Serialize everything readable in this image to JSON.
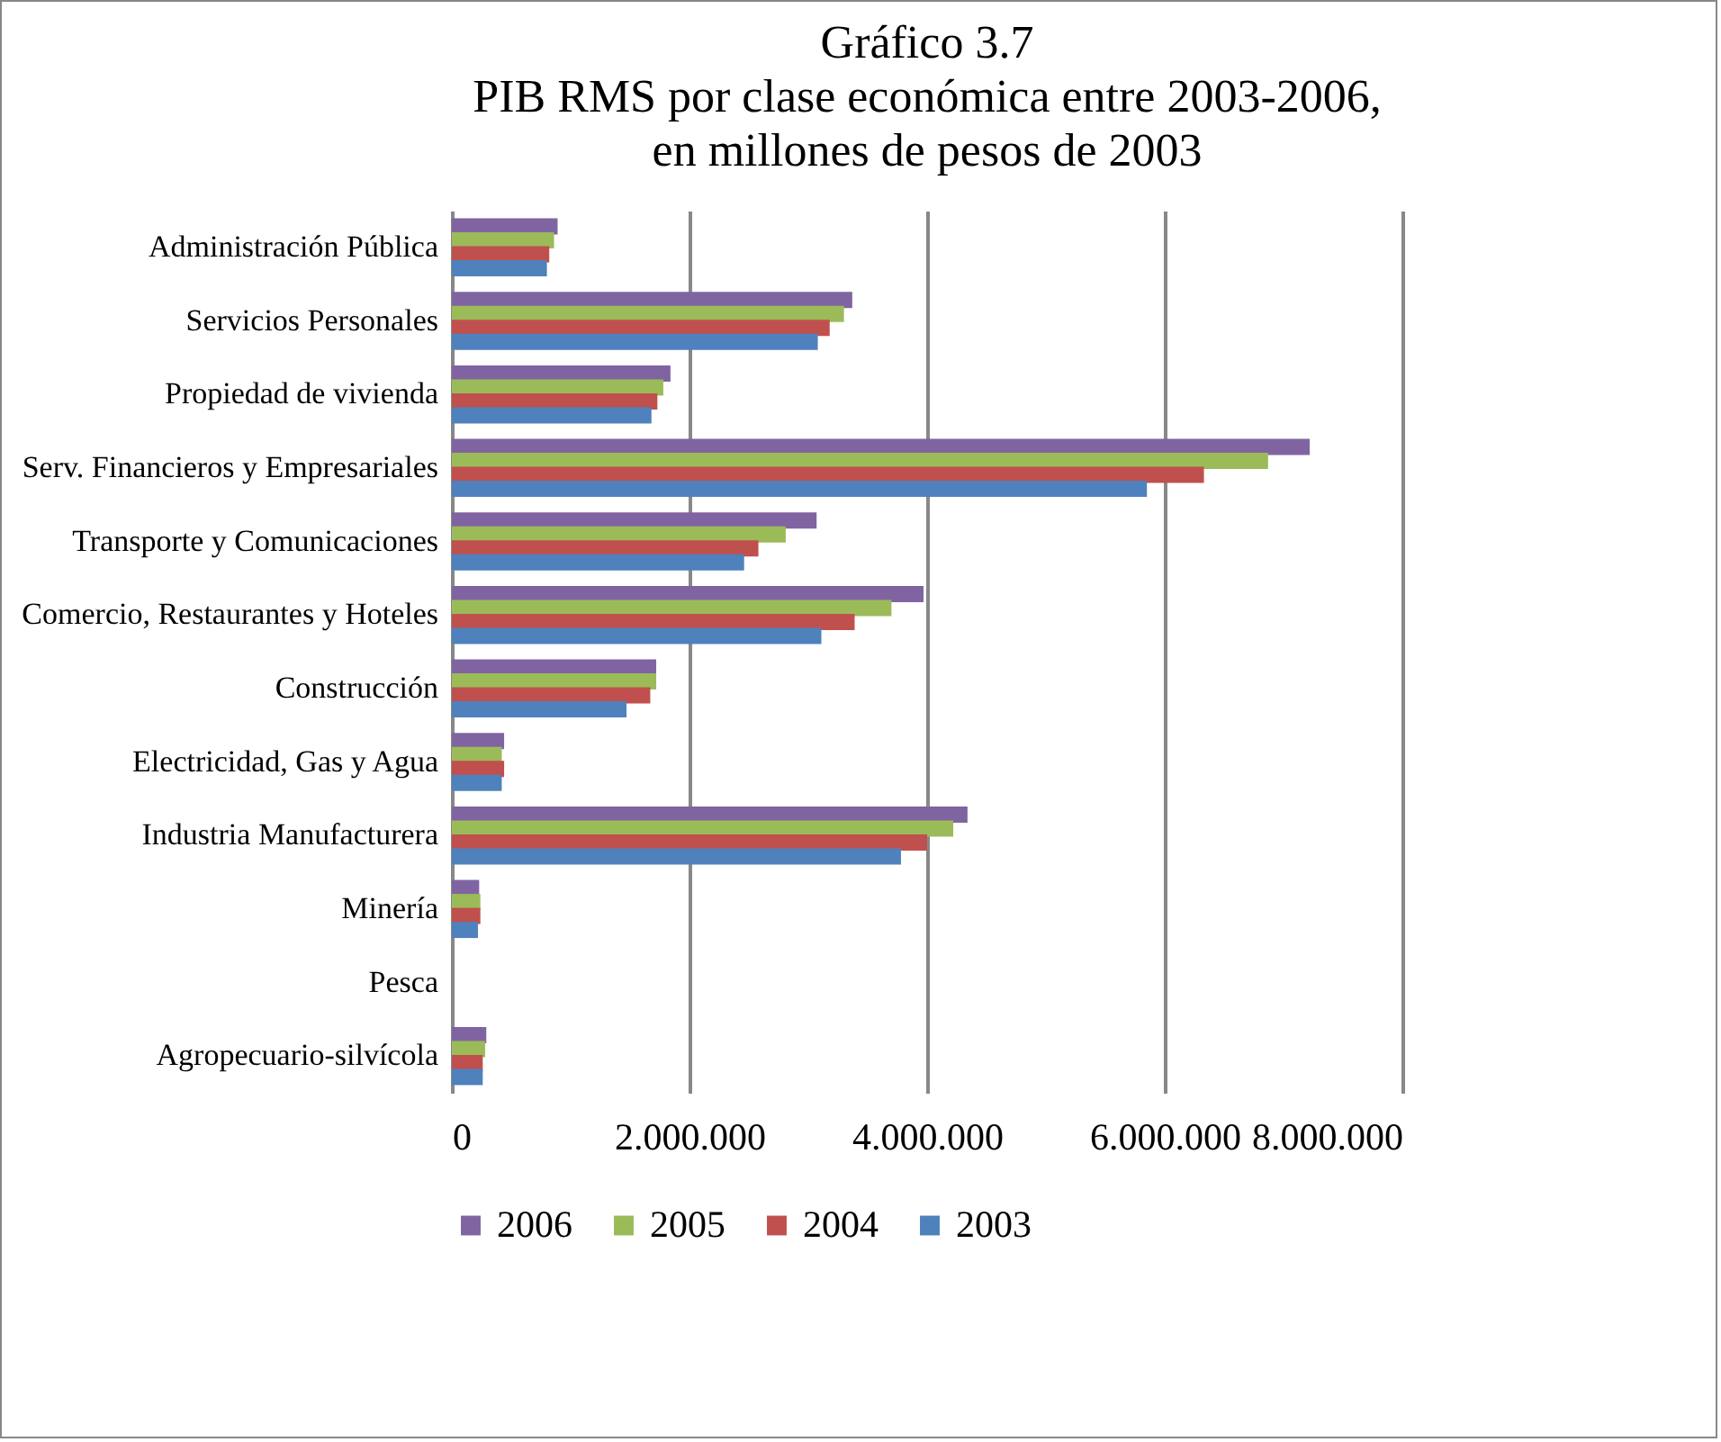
{
  "chart_data": {
    "type": "bar",
    "orientation": "horizontal",
    "title": "Gráfico 3.7\nPIB RMS por clase económica entre 2003-2006,\nen millones de pesos de 2003",
    "categories": [
      "Administración Pública",
      "Servicios Personales",
      "Propiedad de vivienda",
      "Serv. Financieros y Empresariales",
      "Transporte y Comunicaciones",
      "Comercio, Restaurantes y Hoteles",
      "Construcción",
      "Electricidad, Gas y Agua",
      "Industria Manufacturera",
      "Minería",
      "Pesca",
      "Agropecuario-silvícola"
    ],
    "series": [
      {
        "name": "2006",
        "color": "#8064a2",
        "values": [
          890000,
          3370000,
          1840000,
          7220000,
          3070000,
          3970000,
          1720000,
          440000,
          4340000,
          230000,
          0,
          290000
        ]
      },
      {
        "name": "2005",
        "color": "#9bbb59",
        "values": [
          860000,
          3300000,
          1780000,
          6870000,
          2810000,
          3700000,
          1720000,
          420000,
          4220000,
          240000,
          0,
          280000
        ]
      },
      {
        "name": "2004",
        "color": "#c0504d",
        "values": [
          820000,
          3180000,
          1730000,
          6330000,
          2580000,
          3390000,
          1670000,
          440000,
          4000000,
          240000,
          0,
          260000
        ]
      },
      {
        "name": "2003",
        "color": "#4f81bd",
        "values": [
          800000,
          3080000,
          1680000,
          5850000,
          2460000,
          3110000,
          1470000,
          420000,
          3780000,
          220000,
          0,
          260000
        ]
      }
    ],
    "xlim": [
      0,
      8000000
    ],
    "xticks": [
      0,
      {
        "value": 2000000,
        "label": "2.000.000"
      },
      {
        "value": 4000000,
        "label": "4.000.000"
      },
      {
        "value": 6000000,
        "label": "6.000.000"
      },
      {
        "value": 8000000,
        "label": "8.000.000"
      }
    ],
    "grid": "x",
    "legend": "bottom"
  }
}
